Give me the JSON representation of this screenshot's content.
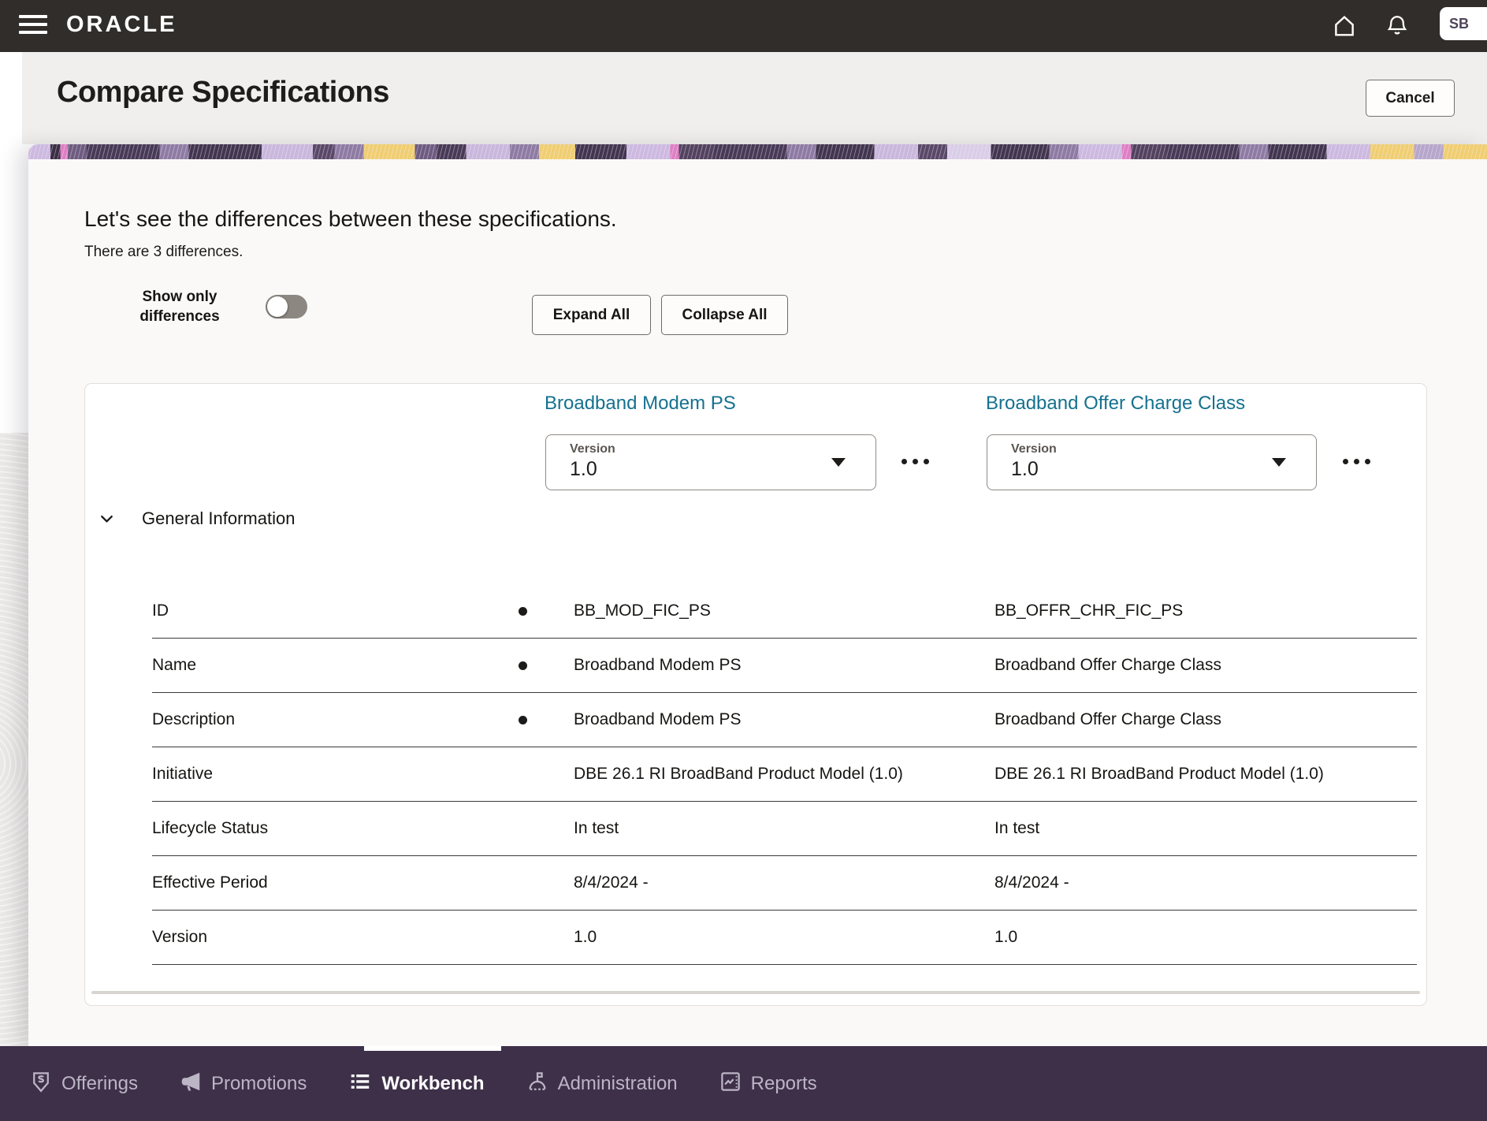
{
  "topbar": {
    "brand": "ORACLE",
    "avatar_initials": "SB"
  },
  "header": {
    "title": "Compare Specifications",
    "cancel_label": "Cancel"
  },
  "intro": {
    "heading": "Let's see the differences between these specifications.",
    "subheading": "There are 3 differences."
  },
  "controls": {
    "toggle_label": "Show only differences",
    "toggle_state": "off",
    "expand_label": "Expand All",
    "collapse_label": "Collapse All"
  },
  "compare": {
    "left_spec": {
      "title": "Broadband Modem PS",
      "version_label": "Version",
      "version_value": "1.0"
    },
    "right_spec": {
      "title": "Broadband Offer Charge Class",
      "version_label": "Version",
      "version_value": "1.0"
    },
    "section_title": "General Information",
    "rows": [
      {
        "label": "ID",
        "diff": true,
        "left": "BB_MOD_FIC_PS",
        "right": "BB_OFFR_CHR_FIC_PS"
      },
      {
        "label": "Name",
        "diff": true,
        "left": "Broadband Modem PS",
        "right": "Broadband Offer Charge Class"
      },
      {
        "label": "Description",
        "diff": true,
        "left": "Broadband Modem PS",
        "right": "Broadband Offer Charge Class"
      },
      {
        "label": "Initiative",
        "diff": false,
        "left": "DBE 26.1 RI BroadBand Product Model (1.0)",
        "right": "DBE 26.1 RI BroadBand Product Model (1.0)"
      },
      {
        "label": "Lifecycle Status",
        "diff": false,
        "left": "In test",
        "right": "In test"
      },
      {
        "label": "Effective Period",
        "diff": false,
        "left": "8/4/2024 -",
        "right": "8/4/2024 -"
      },
      {
        "label": "Version",
        "diff": false,
        "left": "1.0",
        "right": "1.0"
      }
    ]
  },
  "bottom_nav": {
    "items": [
      {
        "label": "Offerings",
        "icon": "tag-icon",
        "active": false
      },
      {
        "label": "Promotions",
        "icon": "megaphone-icon",
        "active": false
      },
      {
        "label": "Workbench",
        "icon": "list-icon",
        "active": true
      },
      {
        "label": "Administration",
        "icon": "stamp-icon",
        "active": false
      },
      {
        "label": "Reports",
        "icon": "report-icon",
        "active": false
      }
    ]
  },
  "colors": {
    "topbar_bg": "#312D2A",
    "header_bg": "#F1EFED",
    "drawer_bg": "#FAF9F8",
    "link_teal": "#15718F",
    "nav_bg": "#3E3049",
    "nav_text": "#BCB5C6",
    "text_dark": "#161513",
    "banner_palette": [
      "#CDB9E0",
      "#DF7FC4",
      "#483A57",
      "#8E7BA3",
      "#F0CE71",
      "#42354F",
      "#D9CDE7"
    ]
  }
}
